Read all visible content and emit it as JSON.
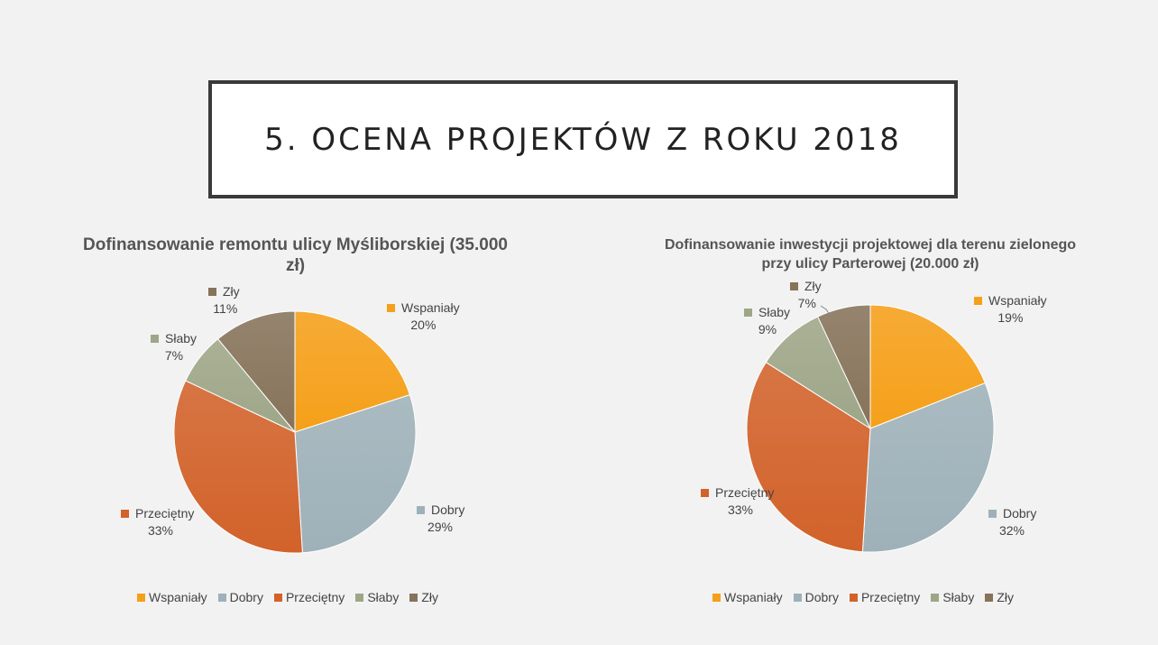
{
  "slide_title": "5. OCENA PROJEKTÓW Z ROKU 2018",
  "colors": {
    "Wspaniały": "#f5a01a",
    "Dobry": "#9eb1b9",
    "Przeciętny": "#d2622a",
    "Słaby": "#9ea688",
    "Zły": "#87735a"
  },
  "chart_data": [
    {
      "type": "pie",
      "title": "Dofinansowanie remontu ulicy Myśliborskiej (35.000 zł)",
      "categories": [
        "Wspaniały",
        "Dobry",
        "Przeciętny",
        "Słaby",
        "Zły"
      ],
      "values": [
        20,
        29,
        33,
        7,
        11
      ],
      "value_labels": [
        "20%",
        "29%",
        "33%",
        "7%",
        "11%"
      ],
      "legend": "bottom"
    },
    {
      "type": "pie",
      "title": "Dofinansowanie inwestycji projektowej dla terenu zielonego przy ulicy Parterowej (20.000 zł)",
      "categories": [
        "Wspaniały",
        "Dobry",
        "Przeciętny",
        "Słaby",
        "Zły"
      ],
      "values": [
        19,
        32,
        33,
        9,
        7
      ],
      "value_labels": [
        "19%",
        "32%",
        "33%",
        "9%",
        "7%"
      ],
      "legend": "bottom"
    }
  ]
}
